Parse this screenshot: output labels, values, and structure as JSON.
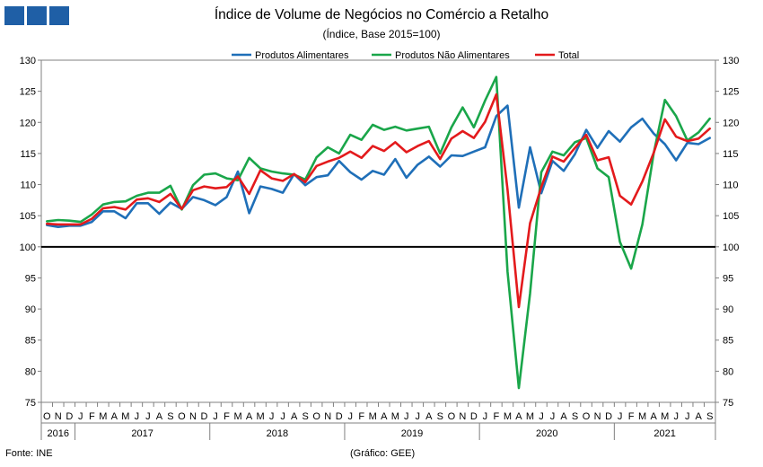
{
  "header": {
    "title": "Índice de Volume de Negócios no Comércio a Retalho",
    "subtitle": "(Índice, Base 2015=100)"
  },
  "footer": {
    "source": "Fonte: INE",
    "credit": "(Gráfico: GEE)"
  },
  "colors": {
    "alimentares": "#1f6fb8",
    "nao_alimentares": "#1aa64a",
    "total": "#e31a1c",
    "reference": "#000000"
  },
  "chart_data": {
    "type": "line",
    "title": "Índice de Volume de Negócios no Comércio a Retalho",
    "subtitle": "(Índice, Base 2015=100)",
    "ylim": [
      75,
      130
    ],
    "yticks": [
      75,
      80,
      85,
      90,
      95,
      100,
      105,
      110,
      115,
      120,
      125,
      130
    ],
    "y_axes": "left and right (same scale)",
    "reference_line": 100,
    "grid": false,
    "legend_position": "top-center",
    "x": [
      "2016-10",
      "2016-11",
      "2016-12",
      "2017-01",
      "2017-02",
      "2017-03",
      "2017-04",
      "2017-05",
      "2017-06",
      "2017-07",
      "2017-08",
      "2017-09",
      "2017-10",
      "2017-11",
      "2017-12",
      "2018-01",
      "2018-02",
      "2018-03",
      "2018-04",
      "2018-05",
      "2018-06",
      "2018-07",
      "2018-08",
      "2018-09",
      "2018-10",
      "2018-11",
      "2018-12",
      "2019-01",
      "2019-02",
      "2019-03",
      "2019-04",
      "2019-05",
      "2019-06",
      "2019-07",
      "2019-08",
      "2019-09",
      "2019-10",
      "2019-11",
      "2019-12",
      "2020-01",
      "2020-02",
      "2020-03",
      "2020-04",
      "2020-05",
      "2020-06",
      "2020-07",
      "2020-08",
      "2020-09",
      "2020-10",
      "2020-11",
      "2020-12",
      "2021-01",
      "2021-02",
      "2021-03",
      "2021-04",
      "2021-05",
      "2021-06",
      "2021-07",
      "2021-08",
      "2021-09"
    ],
    "month_labels": [
      "O",
      "N",
      "D",
      "J",
      "F",
      "M",
      "A",
      "M",
      "J",
      "J",
      "A",
      "S",
      "O",
      "N",
      "D",
      "J",
      "F",
      "M",
      "A",
      "M",
      "J",
      "J",
      "A",
      "S",
      "O",
      "N",
      "D",
      "J",
      "F",
      "M",
      "A",
      "M",
      "J",
      "J",
      "A",
      "S",
      "O",
      "N",
      "D",
      "J",
      "F",
      "M",
      "A",
      "M",
      "J",
      "J",
      "A",
      "S",
      "O",
      "N",
      "D",
      "J",
      "F",
      "M",
      "A",
      "M",
      "J",
      "J",
      "A",
      "S"
    ],
    "years": [
      {
        "label": "2016",
        "start": 0,
        "count": 3
      },
      {
        "label": "2017",
        "start": 3,
        "count": 12
      },
      {
        "label": "2018",
        "start": 15,
        "count": 12
      },
      {
        "label": "2019",
        "start": 27,
        "count": 12
      },
      {
        "label": "2020",
        "start": 39,
        "count": 12
      },
      {
        "label": "2021",
        "start": 51,
        "count": 9
      }
    ],
    "series": [
      {
        "name": "Produtos Alimentares",
        "color": "#1f6fb8",
        "values": [
          103.5,
          103.2,
          103.4,
          103.4,
          104.0,
          105.7,
          105.7,
          104.6,
          107.0,
          107.0,
          105.3,
          107.1,
          106.1,
          108.0,
          107.5,
          106.7,
          108.0,
          112.1,
          105.4,
          109.7,
          109.3,
          108.7,
          111.7,
          109.9,
          111.2,
          111.5,
          113.8,
          112.0,
          110.8,
          112.2,
          111.6,
          114.1,
          111.1,
          113.2,
          114.5,
          112.9,
          114.7,
          114.6,
          115.3,
          116.0,
          121.0,
          122.7,
          106.3,
          116.0,
          108.6,
          113.8,
          112.2,
          114.9,
          118.8,
          115.9,
          118.6,
          116.9,
          119.2,
          120.6,
          118.2,
          116.5,
          113.9,
          116.7,
          116.5,
          117.5
        ]
      },
      {
        "name": "Produtos Não Alimentares",
        "color": "#1aa64a",
        "values": [
          104.1,
          104.3,
          104.2,
          104.0,
          105.2,
          106.8,
          107.2,
          107.3,
          108.2,
          108.7,
          108.7,
          109.8,
          106.0,
          109.9,
          111.6,
          111.8,
          111.0,
          110.7,
          114.3,
          112.6,
          112.1,
          111.8,
          111.6,
          110.8,
          114.4,
          116.0,
          115.0,
          118.0,
          117.2,
          119.6,
          118.8,
          119.3,
          118.7,
          119.0,
          119.3,
          115.0,
          119.2,
          122.4,
          119.2,
          123.5,
          127.3,
          96.0,
          77.3,
          92.5,
          112.0,
          115.3,
          114.7,
          116.8,
          117.5,
          112.6,
          111.2,
          100.8,
          96.5,
          103.6,
          115.0,
          123.6,
          121.0,
          117.1,
          118.4,
          120.6
        ]
      },
      {
        "name": "Total",
        "color": "#e31a1c",
        "values": [
          103.7,
          103.6,
          103.6,
          103.6,
          104.5,
          106.2,
          106.4,
          106.0,
          107.6,
          107.8,
          107.2,
          108.5,
          106.1,
          109.1,
          109.7,
          109.4,
          109.6,
          111.3,
          108.5,
          112.3,
          111.0,
          110.6,
          111.7,
          110.4,
          113.0,
          113.7,
          114.3,
          115.3,
          114.3,
          116.2,
          115.4,
          116.8,
          115.2,
          116.2,
          117.0,
          114.1,
          117.4,
          118.6,
          117.5,
          120.1,
          124.5,
          109.2,
          90.3,
          103.8,
          109.6,
          114.5,
          113.7,
          115.9,
          118.0,
          113.9,
          114.4,
          108.2,
          106.8,
          110.5,
          115.1,
          120.5,
          117.7,
          117.0,
          117.4,
          119.0
        ]
      }
    ],
    "legend": [
      {
        "label": "Produtos Alimentares",
        "color": "#1f6fb8"
      },
      {
        "label": "Produtos Não Alimentares",
        "color": "#1aa64a"
      },
      {
        "label": "Total",
        "color": "#e31a1c"
      }
    ]
  }
}
